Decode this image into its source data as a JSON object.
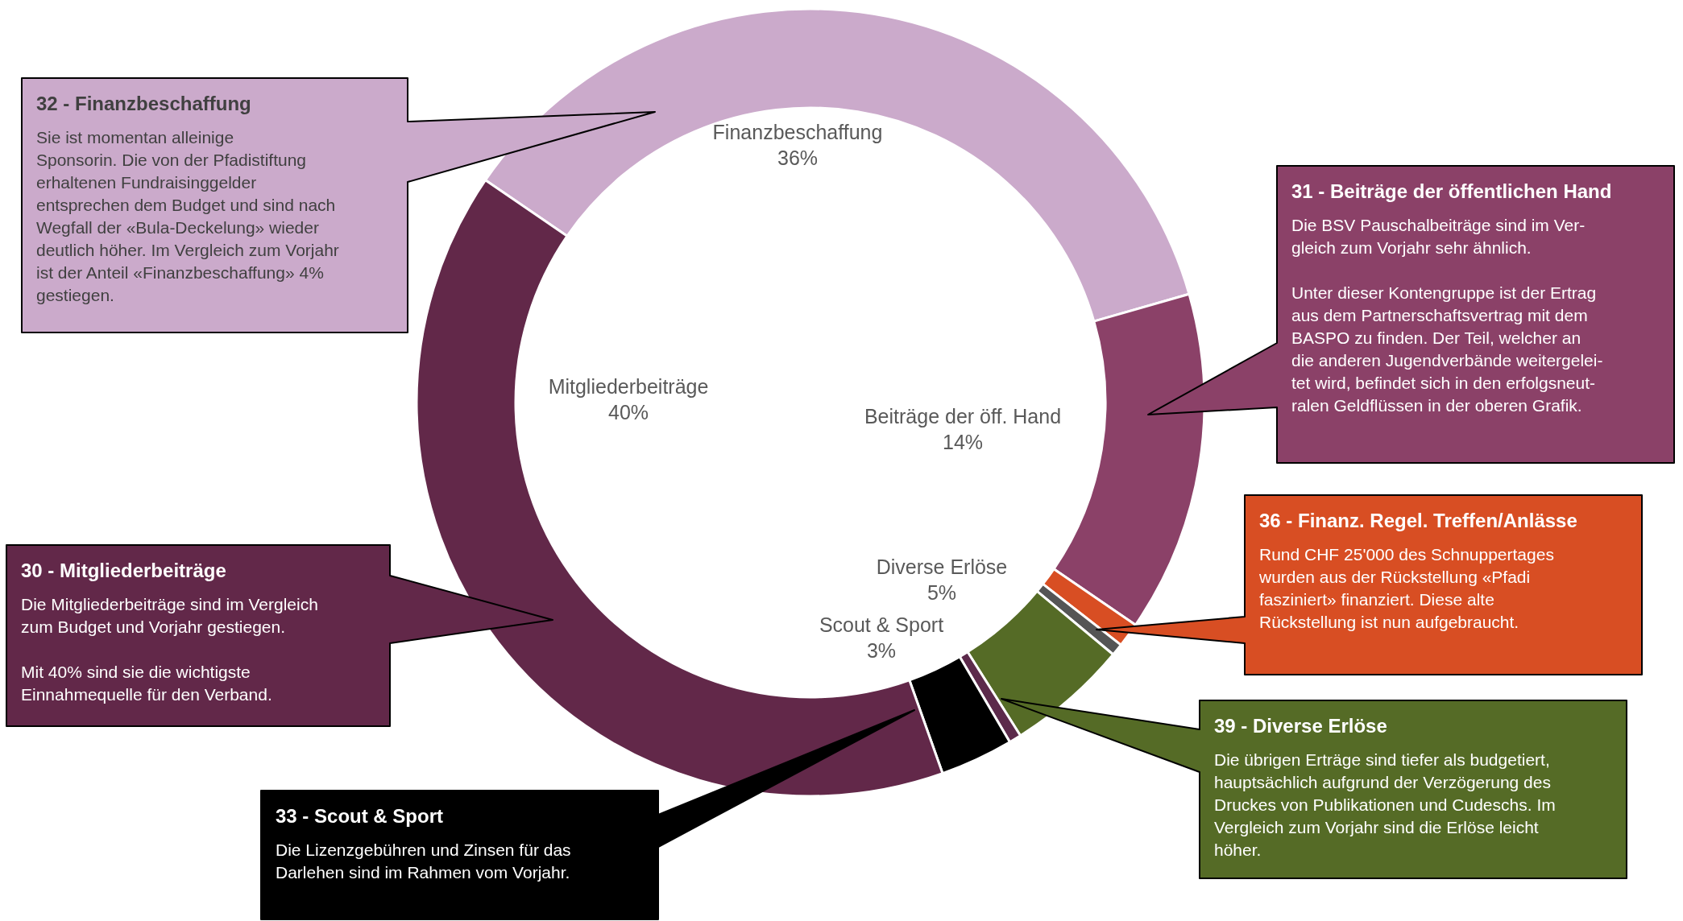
{
  "chart_data": {
    "type": "donut",
    "categories": [
      "Finanzbeschaffung",
      "Beiträge der öff. Hand",
      null,
      null,
      "Diverse Erlöse",
      null,
      "Scout & Sport",
      "Mitgliederbeiträge"
    ],
    "values": [
      36,
      14,
      1,
      0.5,
      5,
      0.5,
      3,
      40
    ],
    "value_labels": [
      "36%",
      "14%",
      null,
      null,
      "5%",
      null,
      "3%",
      "40%"
    ],
    "colors": [
      "#cbaacb",
      "#8b4168",
      "#d84e23",
      "#555555",
      "#556b26",
      "#5c2a4b",
      "#000000",
      "#622849"
    ],
    "legend": false,
    "annotations": [
      "32 - Finanzbeschaffung\nSie ist momentan alleinige\nSponsorin. Die von der Pfadistiftung\nerhaltenen Fundraisinggelder\nentsprechen dem Budget und sind nach\nWegfall der «Bula-Deckelung» wieder\ndeutlich höher. Im Vergleich zum Vorjahr\nist der Anteil «Finanzbeschaffung» 4%\ngestiegen.",
      "31 - Beiträge der öffentlichen Hand\nDie BSV Pauschalbeiträge sind im Ver-\ngleich zum Vorjahr sehr ähnlich.\n\nUnter dieser Kontengruppe ist der Ertrag\naus dem Partnerschaftsvertrag mit dem\nBASPO zu finden. Der Teil, welcher an\ndie anderen Jugendverbände weitergelei-\ntet wird, befindet sich in den erfolgsneut-\nralen Geldflüssen in der oberen Grafik.",
      "36 - Finanz. Regel. Treffen/Anlässe\nRund CHF 25'000 des Schnuppertages\nwurden aus der Rückstellung «Pfadi\nfasziniert» finanziert. Diese alte\nRückstellung ist nun aufgebraucht.",
      "30 - Mitgliederbeiträge\nDie Mitgliederbeiträge sind im Vergleich\nzum Budget und Vorjahr gestiegen.\n\nMit 40% sind sie die wichtigste\nEinnahmequelle für den Verband.",
      "39 - Diverse Erlöse\nDie übrigen Erträge sind tiefer als budgetiert,\nhauptsächlich aufgrund der Verzögerung des\nDruckes von Publikationen und Cudeschs. Im\nVergleich zum Vorjahr sind die Erlöse leicht\nhöher.",
      "33 - Scout & Sport\nDie Lizenzgebühren und Zinsen für das\nDarlehen sind im Rahmen vom Vorjahr."
    ]
  }
}
